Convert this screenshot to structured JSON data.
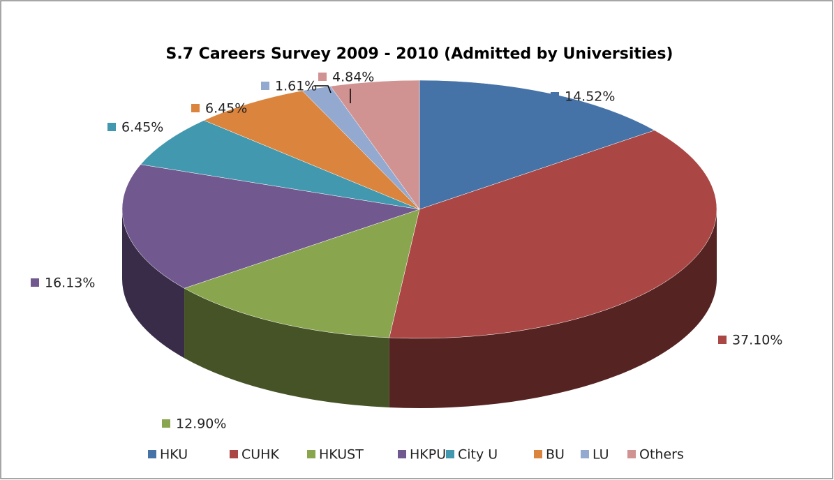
{
  "chart_data": {
    "type": "pie",
    "title": "S.7 Careers Survey 2009 - 2010 (Admitted by Universities)",
    "categories": [
      "HKU",
      "CUHK",
      "HKUST",
      "HKPU",
      "City U",
      "BU",
      "LU",
      "Others"
    ],
    "values": [
      14.52,
      37.1,
      12.9,
      16.13,
      6.45,
      6.45,
      1.61,
      4.84
    ],
    "value_labels": [
      "14.52%",
      "37.10%",
      "12.90%",
      "16.13%",
      "6.45%",
      "6.45%",
      "1.61%",
      "4.84%"
    ],
    "colors": [
      "#4572a7",
      "#aa4643",
      "#89a54e",
      "#71588f",
      "#4198af",
      "#db843d",
      "#93a9cf",
      "#d19392"
    ],
    "legend": "bottom"
  }
}
